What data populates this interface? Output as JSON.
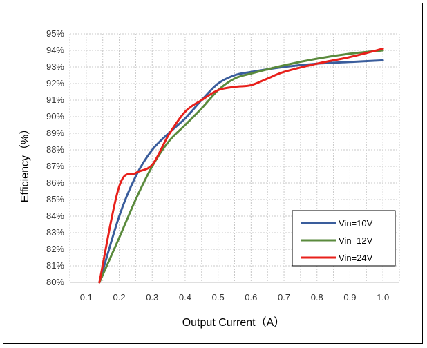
{
  "chart_data": {
    "type": "line",
    "xlabel": "Output Current（A）",
    "ylabel": "Efficiency（%）",
    "xlim": [
      0.05,
      1.05
    ],
    "ylim": [
      80,
      95
    ],
    "x_ticks": [
      "0.1",
      "0.2",
      "0.3",
      "0.4",
      "0.5",
      "0.6",
      "0.7",
      "0.8",
      "0.9",
      "1.0"
    ],
    "y_ticks": [
      "80%",
      "81%",
      "82%",
      "83%",
      "84%",
      "85%",
      "86%",
      "87%",
      "88%",
      "89%",
      "90%",
      "91%",
      "92%",
      "93%",
      "94%",
      "95%"
    ],
    "grid": true,
    "legend_position": "bottom-right",
    "series": [
      {
        "name": "Vin=10V",
        "color": "#3a5d9c",
        "x": [
          0.14,
          0.2,
          0.25,
          0.3,
          0.35,
          0.4,
          0.45,
          0.5,
          0.55,
          0.6,
          0.7,
          0.8,
          0.9,
          1.0
        ],
        "y": [
          80.0,
          84.0,
          86.4,
          88.0,
          89.0,
          89.9,
          91.0,
          92.0,
          92.5,
          92.7,
          93.0,
          93.2,
          93.3,
          93.4
        ]
      },
      {
        "name": "Vin=12V",
        "color": "#5a8a3c",
        "x": [
          0.14,
          0.2,
          0.25,
          0.3,
          0.35,
          0.4,
          0.45,
          0.5,
          0.55,
          0.6,
          0.7,
          0.8,
          0.9,
          1.0
        ],
        "y": [
          80.0,
          82.7,
          85.0,
          87.0,
          88.5,
          89.5,
          90.5,
          91.6,
          92.3,
          92.6,
          93.1,
          93.5,
          93.8,
          94.0
        ]
      },
      {
        "name": "Vin=24V",
        "color": "#e8201b",
        "x": [
          0.14,
          0.2,
          0.25,
          0.3,
          0.35,
          0.4,
          0.45,
          0.5,
          0.55,
          0.6,
          0.65,
          0.7,
          0.8,
          0.9,
          1.0
        ],
        "y": [
          80.0,
          85.8,
          86.6,
          87.1,
          88.9,
          90.3,
          91.0,
          91.6,
          91.8,
          91.9,
          92.3,
          92.7,
          93.2,
          93.6,
          94.1
        ]
      }
    ]
  }
}
